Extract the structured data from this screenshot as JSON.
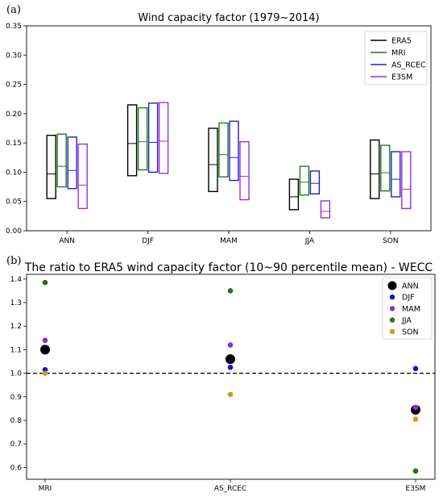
{
  "chart_data": [
    {
      "panel_label": "(a)",
      "type": "box",
      "title": "Wind capacity factor (1979~2014)",
      "categories": [
        "ANN",
        "DJF",
        "MAM",
        "JJA",
        "SON"
      ],
      "ylim": [
        0.0,
        0.35
      ],
      "yticks": [
        "0.00",
        "0.05",
        "0.10",
        "0.15",
        "0.20",
        "0.25",
        "0.30",
        "0.35"
      ],
      "legend_position": "top-right",
      "series": [
        {
          "name": "ERA5",
          "color": "#000000",
          "boxes": [
            [
              0.055,
              0.097,
              0.163
            ],
            [
              0.094,
              0.149,
              0.215
            ],
            [
              0.067,
              0.113,
              0.175
            ],
            [
              0.036,
              0.058,
              0.088
            ],
            [
              0.055,
              0.097,
              0.155
            ]
          ]
        },
        {
          "name": "MRI",
          "color": "#1f7a1f",
          "boxes": [
            [
              0.075,
              0.11,
              0.165
            ],
            [
              0.104,
              0.152,
              0.21
            ],
            [
              0.092,
              0.13,
              0.184
            ],
            [
              0.061,
              0.083,
              0.11
            ],
            [
              0.068,
              0.099,
              0.146
            ]
          ]
        },
        {
          "name": "AS_RCEC",
          "color": "#2020c8",
          "boxes": [
            [
              0.072,
              0.103,
              0.16
            ],
            [
              0.1,
              0.151,
              0.218
            ],
            [
              0.086,
              0.125,
              0.187
            ],
            [
              0.063,
              0.081,
              0.102
            ],
            [
              0.058,
              0.088,
              0.135
            ]
          ]
        },
        {
          "name": "E3SM",
          "color": "#9b30d8",
          "boxes": [
            [
              0.038,
              0.078,
              0.148
            ],
            [
              0.098,
              0.153,
              0.219
            ],
            [
              0.053,
              0.093,
              0.152
            ],
            [
              0.022,
              0.033,
              0.051
            ],
            [
              0.038,
              0.071,
              0.135
            ]
          ]
        }
      ]
    },
    {
      "panel_label": "(b)",
      "type": "scatter",
      "title": "The ratio to ERA5 wind capacity factor (10~90 percentile mean) - WECC",
      "categories": [
        "MRI",
        "AS_RCEC",
        "E3SM"
      ],
      "ylim": [
        0.55,
        1.42
      ],
      "yticks": [
        "0.6",
        "0.7",
        "0.8",
        "0.9",
        "1.0",
        "1.1",
        "1.2",
        "1.3",
        "1.4"
      ],
      "reference_line": 1.0,
      "legend_position": "top-right",
      "series": [
        {
          "name": "ANN",
          "color": "#000000",
          "size": "large",
          "values": [
            1.1,
            1.06,
            0.845
          ]
        },
        {
          "name": "DJF",
          "color": "#1010e0",
          "size": "small",
          "values": [
            1.015,
            1.025,
            1.02
          ]
        },
        {
          "name": "MAM",
          "color": "#8a2be2",
          "size": "small",
          "values": [
            1.14,
            1.12,
            0.855
          ]
        },
        {
          "name": "JJA",
          "color": "#2e6b1a",
          "size": "small",
          "values": [
            1.385,
            1.35,
            0.585
          ]
        },
        {
          "name": "SON",
          "color": "#c9a11a",
          "size": "small",
          "values": [
            1.0,
            0.91,
            0.805
          ]
        }
      ]
    }
  ]
}
